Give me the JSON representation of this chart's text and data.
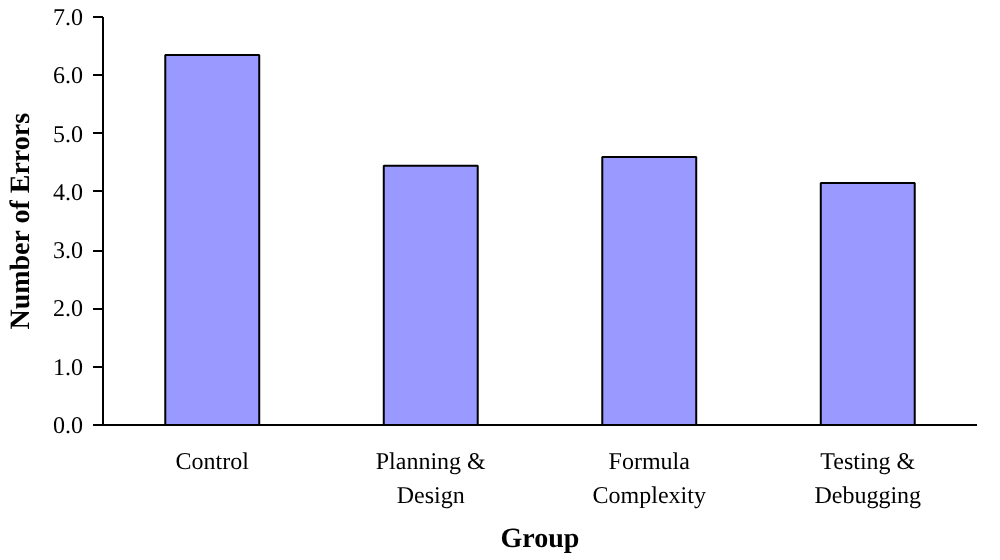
{
  "chart_data": {
    "type": "bar",
    "xlabel": "Group",
    "ylabel": "Number of Errors",
    "categories": [
      "Control",
      "Planning &\nDesign",
      "Formula\nComplexity",
      "Testing &\nDebugging"
    ],
    "values": [
      6.35,
      4.45,
      4.6,
      4.15
    ],
    "color": "#9999ff",
    "ylim": [
      0,
      7
    ],
    "yticks": [
      {
        "value": 0,
        "label": "0.0"
      },
      {
        "value": 1,
        "label": "1.0"
      },
      {
        "value": 2,
        "label": "2.0"
      },
      {
        "value": 3,
        "label": "3.0"
      },
      {
        "value": 4,
        "label": "4.0"
      },
      {
        "value": 5,
        "label": "5.0"
      },
      {
        "value": 6,
        "label": "6.0"
      },
      {
        "value": 7,
        "label": "7.0"
      }
    ],
    "grid": false
  }
}
